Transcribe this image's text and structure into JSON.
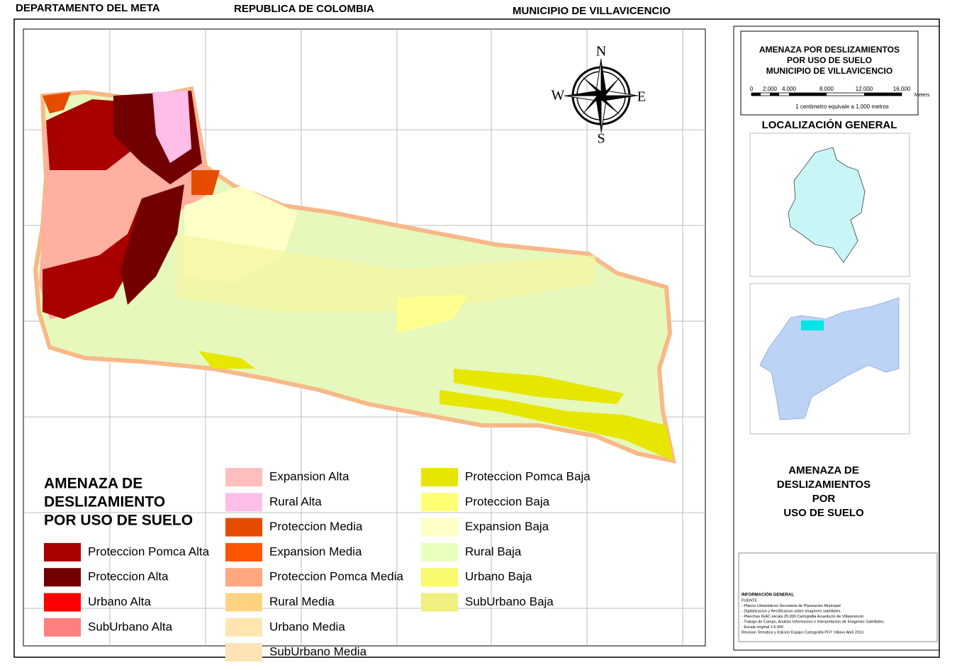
{
  "header": {
    "left": "DEPARTAMENTO DEL META",
    "center": "REPUBLICA DE COLOMBIA",
    "right": "MUNICIPIO DE VILLAVICENCIO"
  },
  "compass": {
    "n": "N",
    "s": "S",
    "e": "E",
    "w": "W"
  },
  "title_box": {
    "lines": [
      "AMENAZA POR DESLIZAMIENTOS",
      "POR USO DE SUELO",
      "MUNICIPIO DE VILLAVICENCIO"
    ],
    "scale_labels": [
      "0",
      "2.000",
      "4.000",
      "8.000",
      "12.000",
      "16.000"
    ],
    "scale_unit": "Meters",
    "scale_note": "1 centimetro equivale a 1.000 metros"
  },
  "location": {
    "title": "LOCALIZACIÓN GENERAL"
  },
  "side_title": {
    "lines": [
      "AMENAZA DE",
      "DESLIZAMIENTOS",
      "POR",
      "USO DE SUELO"
    ]
  },
  "legend": {
    "title_lines": [
      "AMENAZA DE",
      "DESLIZAMIENTO",
      "POR USO DE SUELO"
    ],
    "items": [
      {
        "label": "Proteccion Pomca Alta",
        "color": "#a80000"
      },
      {
        "label": "Proteccion Alta",
        "color": "#730000"
      },
      {
        "label": "Urbano Alta",
        "color": "#ff0000"
      },
      {
        "label": "SubUrbano Alta",
        "color": "#ff7f7f"
      },
      {
        "label": "Expansion Alta",
        "color": "#ffbebe"
      },
      {
        "label": "Rural Alta",
        "color": "#ffbee8"
      },
      {
        "label": "Proteccion Media",
        "color": "#e64c00"
      },
      {
        "label": "Expansion Media",
        "color": "#ff5500"
      },
      {
        "label": "Proteccion Pomca Media",
        "color": "#ffa77f"
      },
      {
        "label": "Rural Media",
        "color": "#ffd37f"
      },
      {
        "label": "Urbano Media",
        "color": "#ffe6b0"
      },
      {
        "label": "SubUrbano Media",
        "color": "#fde4b4"
      },
      {
        "label": "Proteccion Pomca Baja",
        "color": "#e6e600"
      },
      {
        "label": "Proteccion Baja",
        "color": "#ffff73"
      },
      {
        "label": "Expansion Baja",
        "color": "#ffffc8"
      },
      {
        "label": "Rural Baja",
        "color": "#e9ffbe"
      },
      {
        "label": "Urbano Baja",
        "color": "#fafa6e"
      },
      {
        "label": "SubUrbano Baja",
        "color": "#f0f080"
      }
    ]
  },
  "info": {
    "title": "INFORMACIÓN GENERAL",
    "lines": [
      "FUENTE",
      "- Planos Urbanisticos Secretaria de Planeacion Municipal",
      "- Digitalizacion y Rectificacion sobre imagenes satelitales.",
      "- Planchas IGAC escala 25.000 Cartografia Acueducto de Villavicencio",
      "- Trabajo de Campo, Analisis Informacion e Interpretacion de Imagenes Satelitales.",
      "- Escala original 1:5.000",
      "Revision Tematica y Edicion Equipo Cartografia POT Villavo Abril 2013"
    ]
  }
}
